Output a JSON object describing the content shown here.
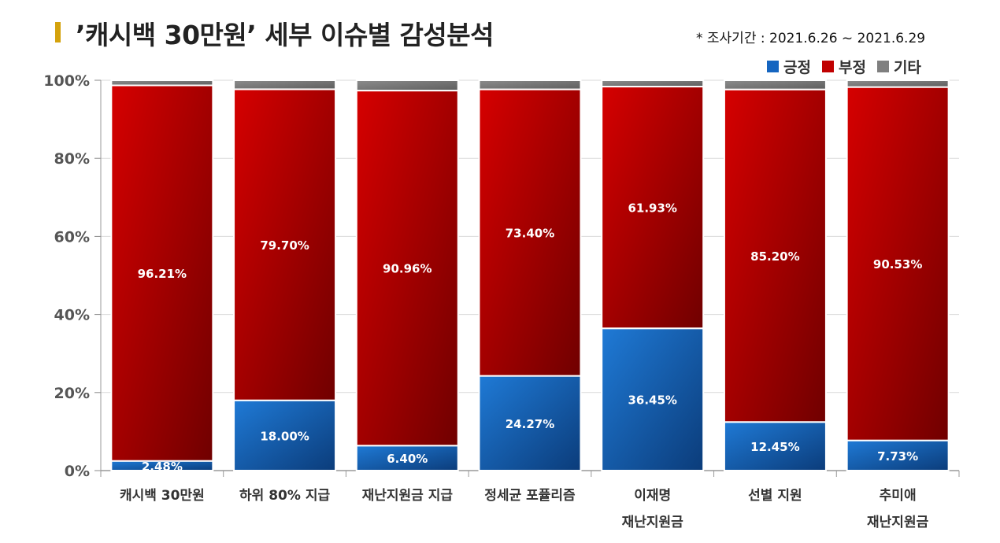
{
  "header": {
    "title": "’캐시백 30만원’ 세부 이슈별 감성분석",
    "period": "* 조사기간 : 2021.6.26 ~ 2021.6.29"
  },
  "legend": [
    {
      "label": "긍정",
      "color": "#1565c0"
    },
    {
      "label": "부정",
      "color": "#c00000"
    },
    {
      "label": "기타",
      "color": "#7f7f7f"
    }
  ],
  "chart_data": {
    "type": "bar",
    "stacked": true,
    "title": "’캐시백 30만원’ 세부 이슈별 감성분석",
    "categories": [
      [
        "캐시백 30만원"
      ],
      [
        "하위 80% 지급"
      ],
      [
        "재난지원금 지급"
      ],
      [
        "정세균 포퓰리즘"
      ],
      [
        "이재명",
        "재난지원금"
      ],
      [
        "선별 지원"
      ],
      [
        "추미애",
        "재난지원금"
      ]
    ],
    "series": [
      {
        "name": "긍정",
        "color": "#1565c0",
        "values": [
          2.48,
          18.0,
          6.4,
          24.27,
          36.45,
          12.45,
          7.73
        ],
        "labels": [
          "2.48%",
          "18.00%",
          "6.40%",
          "24.27%",
          "36.45%",
          "12.45%",
          "7.73%"
        ]
      },
      {
        "name": "부정",
        "color": "#c00000",
        "values": [
          96.21,
          79.7,
          90.96,
          73.4,
          61.93,
          85.2,
          90.53
        ],
        "labels": [
          "96.21%",
          "79.70%",
          "90.96%",
          "73.40%",
          "61.93%",
          "85.20%",
          "90.53%"
        ]
      },
      {
        "name": "기타",
        "color": "#7f7f7f",
        "values": [
          1.31,
          2.3,
          2.64,
          2.33,
          1.62,
          2.35,
          1.74
        ]
      }
    ],
    "yticks": [
      "0%",
      "20%",
      "40%",
      "60%",
      "80%",
      "100%"
    ],
    "ylim": [
      0,
      100
    ],
    "grid": true,
    "legend_position": "top-right"
  }
}
